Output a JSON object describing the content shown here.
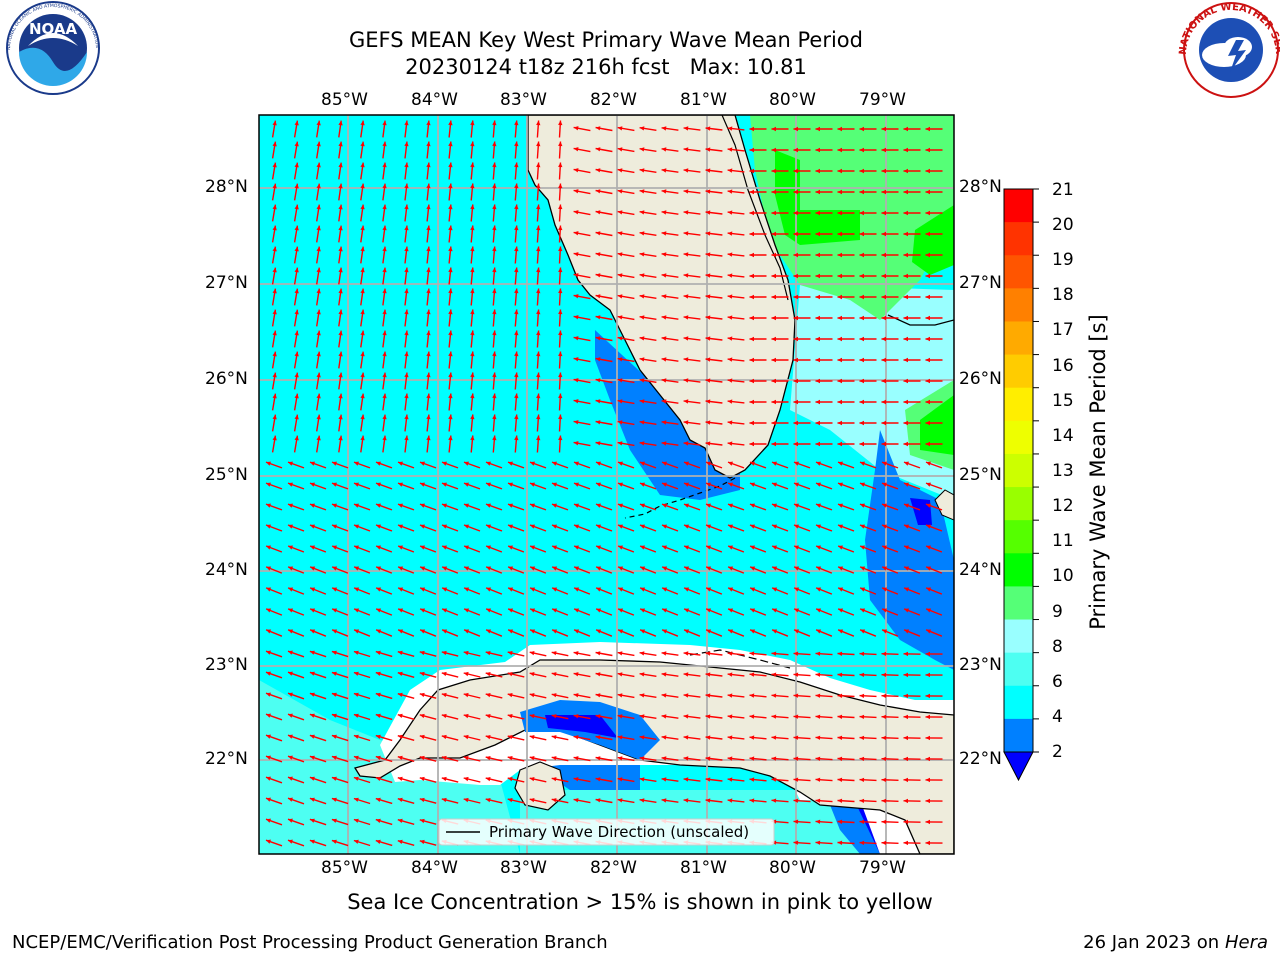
{
  "header": {
    "title_line1": "GEFS MEAN Key West Primary Wave Mean Period",
    "title_line2": "20230124 t18z 216h fcst   Max: 10.81"
  },
  "logos": {
    "left": {
      "name": "noaa-logo",
      "text": "NOAA",
      "ring_text": "NATIONAL OCEANIC AND ATMOSPHERIC ADMINISTRATION · U.S. DEPARTMENT OF COMMERCE"
    },
    "right": {
      "name": "nws-logo",
      "ring_text": "NATIONAL WEATHER SERVICE"
    }
  },
  "map": {
    "lon_labels": [
      "85°W",
      "84°W",
      "83°W",
      "82°W",
      "81°W",
      "80°W",
      "79°W"
    ],
    "lat_labels": [
      "28°N",
      "27°N",
      "26°N",
      "25°N",
      "24°N",
      "23°N",
      "22°N"
    ],
    "legend_text": "Primary Wave Direction (unscaled)",
    "colors": {
      "land": "#eeecdc",
      "period_2_4": "#0080ff",
      "period_4_6": "#00ffff",
      "period_6_8": "#4dfff2",
      "period_8_9": "#99ffff",
      "period_9_10": "#55ff77",
      "period_10_11": "#00ff00",
      "period_below_2": "#0000ff",
      "arrow": "#ff0000",
      "grid": "#b0b0b0"
    }
  },
  "colorbar": {
    "title": "Primary Wave Mean Period [s]",
    "labels": [
      "21",
      "20",
      "19",
      "18",
      "17",
      "16",
      "15",
      "14",
      "13",
      "12",
      "11",
      "10",
      "9",
      "8",
      "6",
      "4",
      "2"
    ],
    "colors": [
      "#ff0000",
      "#ff3300",
      "#ff5500",
      "#ff8000",
      "#ffaa00",
      "#ffcc00",
      "#ffee00",
      "#eeff00",
      "#ccff00",
      "#99ff00",
      "#55ff00",
      "#00ff00",
      "#55ff77",
      "#99ffff",
      "#4dfff2",
      "#00ffff",
      "#0080ff"
    ],
    "under_color": "#0000ff"
  },
  "notes": {
    "sea_ice": "Sea Ice Concentration > 15% is shown in pink to yellow"
  },
  "footer": {
    "left": "NCEP/EMC/Verification Post Processing Product Generation Branch",
    "date": "26 Jan 2023 on ",
    "machine": "Hera"
  }
}
